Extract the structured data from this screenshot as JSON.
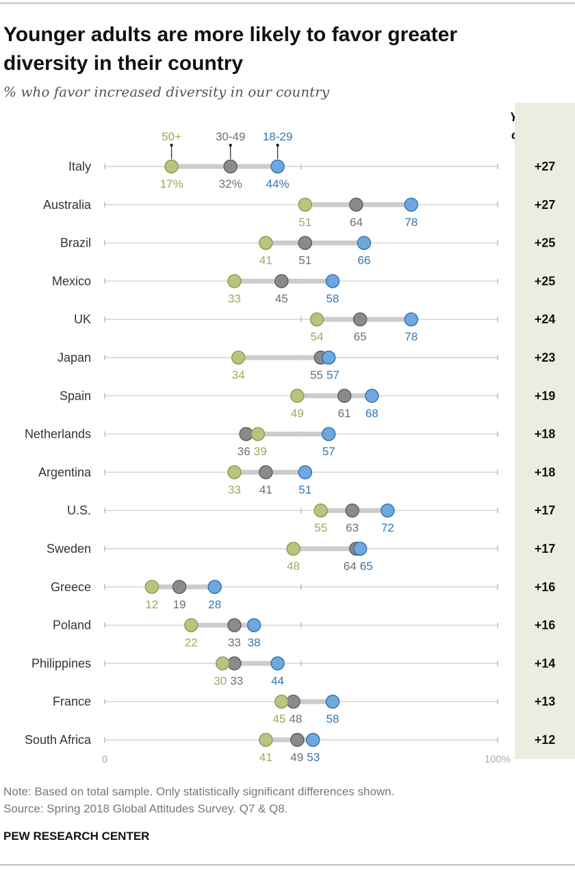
{
  "title": "Younger adults are more likely to favor greater diversity in their country",
  "subtitle": "% who favor increased diversity in our country",
  "gap_header": [
    "Youngest -",
    "oldest gap"
  ],
  "note": "Note: Based on total sample. Only statistically significant differences shown.",
  "source": "Source: Spring 2018 Global Attitudes Survey. Q7 & Q8.",
  "brand": "PEW RESEARCH CENTER",
  "colors": {
    "age_50_plus": "#b8c57e",
    "age_30_49": "#8b8b8b",
    "age_18_29": "#6fa8dc"
  },
  "chart_data": {
    "type": "dot-plot",
    "xlim": [
      0,
      100
    ],
    "x_tick_labels": [
      "0",
      "100%"
    ],
    "series": [
      {
        "name": "50+",
        "label_color": "#9aaa55",
        "values": [
          17,
          51,
          41,
          33,
          54,
          34,
          49,
          39,
          33,
          55,
          48,
          12,
          22,
          30,
          45,
          41
        ]
      },
      {
        "name": "30-49",
        "label_color": "#6e6e6e",
        "values": [
          32,
          64,
          51,
          45,
          65,
          55,
          61,
          36,
          41,
          63,
          64,
          19,
          33,
          33,
          48,
          49
        ]
      },
      {
        "name": "18-29",
        "label_color": "#2f75b5",
        "values": [
          44,
          78,
          66,
          58,
          78,
          57,
          68,
          57,
          51,
          72,
          65,
          28,
          38,
          44,
          58,
          53
        ]
      }
    ],
    "categories": [
      "Italy",
      "Australia",
      "Brazil",
      "Mexico",
      "UK",
      "Japan",
      "Spain",
      "Netherlands",
      "Argentina",
      "U.S.",
      "Sweden",
      "Greece",
      "Poland",
      "Philippines",
      "France",
      "South Africa"
    ],
    "first_row_value_labels": [
      "17%",
      "32%",
      "44%"
    ],
    "gap": [
      "+27",
      "+27",
      "+25",
      "+25",
      "+24",
      "+23",
      "+19",
      "+18",
      "+18",
      "+17",
      "+17",
      "+16",
      "+16",
      "+14",
      "+13",
      "+12"
    ]
  }
}
